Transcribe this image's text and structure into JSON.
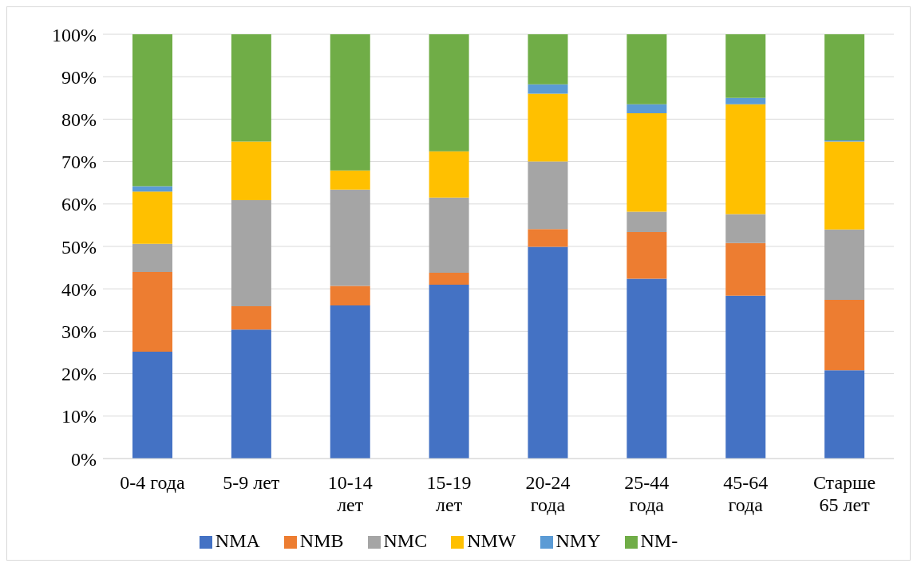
{
  "chart_data": {
    "type": "bar",
    "stacked": true,
    "categories": [
      "0-4 года",
      "5-9 лет",
      "10-14 лет",
      "15-19 лет",
      "20-24 года",
      "25-44 года",
      "45-64 года",
      "Старше 65 лет"
    ],
    "series": [
      {
        "name": "NMA",
        "color": "#4472c4",
        "values": [
          25.2,
          30.4,
          36.1,
          41.0,
          49.9,
          42.4,
          38.4,
          20.8
        ]
      },
      {
        "name": "NMB",
        "color": "#ed7d31",
        "values": [
          18.8,
          5.5,
          4.6,
          2.8,
          4.2,
          11.0,
          12.4,
          16.6
        ]
      },
      {
        "name": "NMC",
        "color": "#a5a5a5",
        "values": [
          6.6,
          25.0,
          22.7,
          17.7,
          15.9,
          4.8,
          6.8,
          16.6
        ]
      },
      {
        "name": "NMW",
        "color": "#ffc000",
        "values": [
          12.3,
          13.8,
          4.5,
          10.9,
          16.0,
          23.2,
          25.9,
          20.7
        ]
      },
      {
        "name": "NMY",
        "color": "#5b9bd5",
        "values": [
          1.3,
          0,
          0,
          0,
          2.2,
          2.1,
          1.5,
          0.3
        ]
      },
      {
        "name": "NM-",
        "color": "#70ad47",
        "values": [
          35.8,
          25.3,
          32.1,
          27.6,
          11.8,
          16.5,
          15.0,
          25.0
        ]
      }
    ],
    "ylim": [
      0,
      100
    ],
    "yticks": [
      {
        "value": 0,
        "label": "0%"
      },
      {
        "value": 10,
        "label": "10%"
      },
      {
        "value": 20,
        "label": "20%"
      },
      {
        "value": 30,
        "label": "30%"
      },
      {
        "value": 40,
        "label": "40%"
      },
      {
        "value": 50,
        "label": "50%"
      },
      {
        "value": 60,
        "label": "60%"
      },
      {
        "value": 70,
        "label": "70%"
      },
      {
        "value": 80,
        "label": "80%"
      },
      {
        "value": 90,
        "label": "90%"
      },
      {
        "value": 100,
        "label": "100%"
      }
    ],
    "grid": "y",
    "legend": "bottom"
  }
}
